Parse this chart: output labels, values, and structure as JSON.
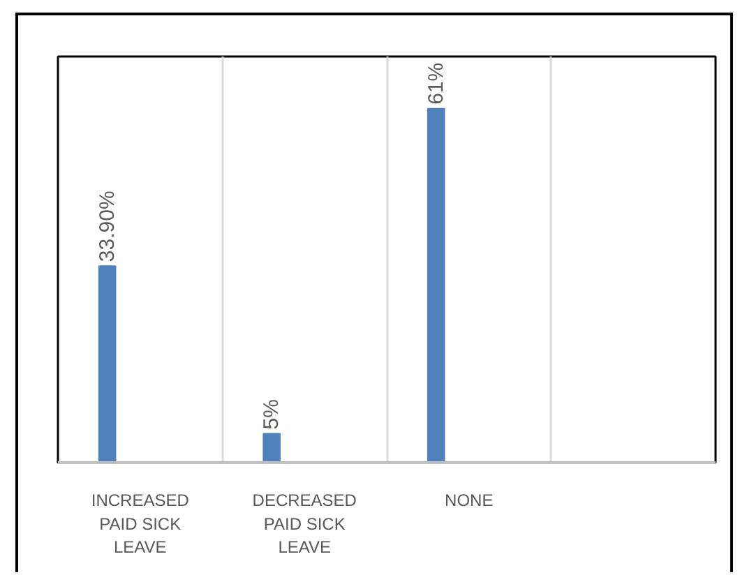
{
  "chart_data": {
    "type": "bar",
    "categories": [
      "INCREASED PAID SICK LEAVE",
      "DECREASED PAID SICK LEAVE",
      "NONE",
      null
    ],
    "values": [
      33.9,
      5,
      61,
      null
    ],
    "value_labels": [
      "33.90%",
      "5%",
      "61%",
      null
    ],
    "color": "#4f81bd",
    "ylim": [
      0,
      70
    ],
    "tick_labels": "x",
    "grid": "x"
  }
}
